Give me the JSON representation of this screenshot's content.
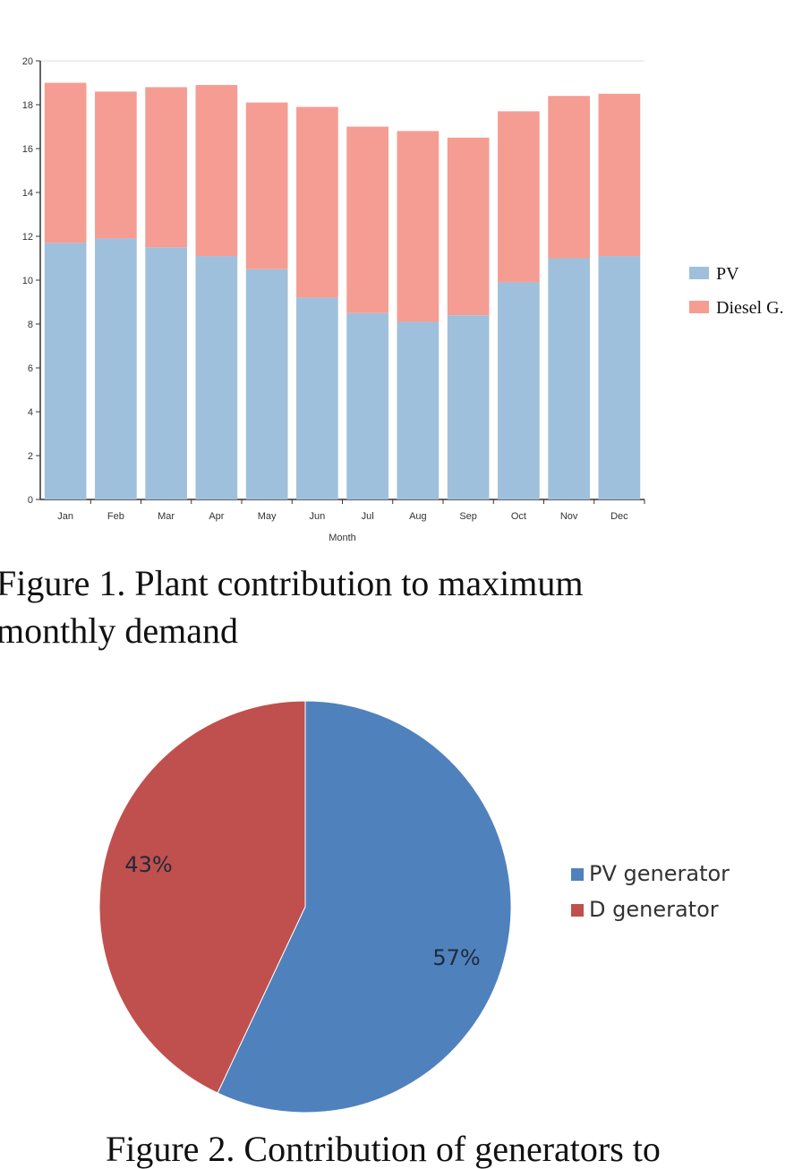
{
  "chart_data": [
    {
      "type": "bar",
      "stacked": true,
      "title": "",
      "xlabel": "Month",
      "ylabel": "",
      "ylim": [
        0,
        20
      ],
      "yticks": [
        "0",
        "2",
        "4",
        "6",
        "8",
        "10",
        "12",
        "14",
        "16",
        "18",
        "20"
      ],
      "categories": [
        "Jan",
        "Feb",
        "Mar",
        "Apr",
        "May",
        "Jun",
        "Jul",
        "Aug",
        "Sep",
        "Oct",
        "Nov",
        "Dec"
      ],
      "series": [
        {
          "name": "PV",
          "color": "#9ec0dc",
          "values": [
            11.7,
            11.9,
            11.5,
            11.1,
            10.5,
            9.2,
            8.5,
            8.1,
            8.4,
            9.9,
            11.0,
            11.1
          ]
        },
        {
          "name": "Diesel G.",
          "color": "#f59d93",
          "values": [
            7.3,
            6.7,
            7.3,
            7.8,
            7.6,
            8.7,
            8.5,
            8.7,
            8.1,
            7.8,
            7.4,
            7.4
          ]
        }
      ],
      "legend": "right",
      "grid": false
    },
    {
      "type": "pie",
      "title": "",
      "slices": [
        {
          "name": "PV generator",
          "value": 57,
          "label": "57%",
          "color": "#4f81bd"
        },
        {
          "name": "D generator",
          "value": 43,
          "label": "43%",
          "color": "#c0504d"
        }
      ],
      "legend": "right"
    }
  ],
  "captions": {
    "figure1_line1": "Figure 1. Plant contribution to maximum",
    "figure1_line2": "monthly demand",
    "figure2_line1": "Figure 2. Contribution of generators to"
  }
}
